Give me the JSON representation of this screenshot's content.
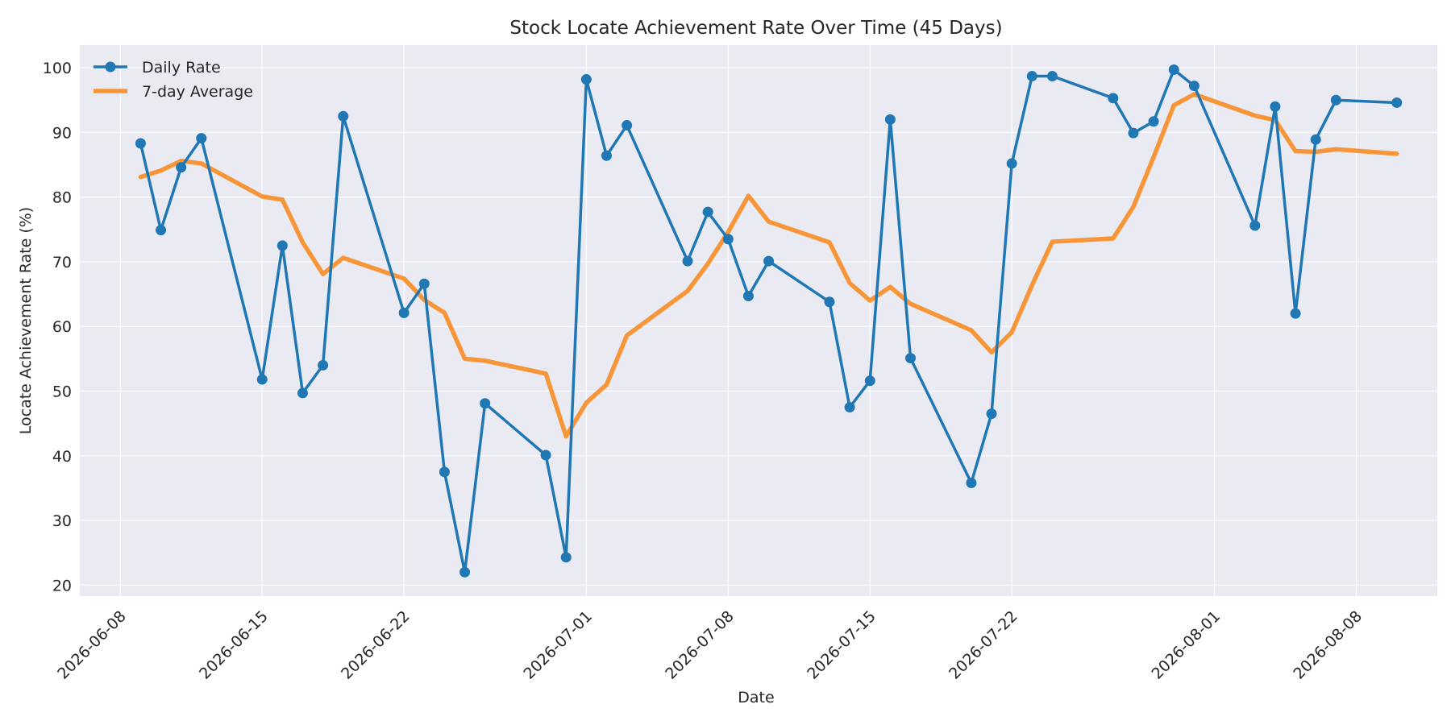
{
  "chart_data": {
    "type": "line",
    "title": "Stock Locate Achievement Rate Over Time (45 Days)",
    "xlabel": "Date",
    "ylabel": "Locate Achievement Rate (%)",
    "ylim": [
      18.3,
      103.5
    ],
    "xlim": [
      "2026-06-06",
      "2026-08-12"
    ],
    "yticks": [
      20,
      30,
      40,
      50,
      60,
      70,
      80,
      90,
      100
    ],
    "xticks": [
      "2026-06-08",
      "2026-06-15",
      "2026-06-22",
      "2026-07-01",
      "2026-07-08",
      "2026-07-15",
      "2026-07-22",
      "2026-08-01",
      "2026-08-08"
    ],
    "grid": true,
    "legend_position": "top-left",
    "series": [
      {
        "name": "Daily Rate",
        "color": "#1f77b4",
        "marker": "circle",
        "points": [
          [
            "2026-06-09",
            88.3
          ],
          [
            "2026-06-10",
            74.9
          ],
          [
            "2026-06-11",
            84.6
          ],
          [
            "2026-06-12",
            89.1
          ],
          [
            "2026-06-15",
            51.8
          ],
          [
            "2026-06-16",
            72.5
          ],
          [
            "2026-06-17",
            49.7
          ],
          [
            "2026-06-18",
            54.0
          ],
          [
            "2026-06-19",
            92.5
          ],
          [
            "2026-06-22",
            62.1
          ],
          [
            "2026-06-23",
            66.6
          ],
          [
            "2026-06-24",
            37.5
          ],
          [
            "2026-06-25",
            22.0
          ],
          [
            "2026-06-26",
            48.1
          ],
          [
            "2026-06-29",
            40.1
          ],
          [
            "2026-06-30",
            24.3
          ],
          [
            "2026-07-01",
            98.2
          ],
          [
            "2026-07-02",
            86.4
          ],
          [
            "2026-07-03",
            91.1
          ],
          [
            "2026-07-06",
            70.1
          ],
          [
            "2026-07-07",
            77.7
          ],
          [
            "2026-07-08",
            73.5
          ],
          [
            "2026-07-09",
            64.7
          ],
          [
            "2026-07-10",
            70.1
          ],
          [
            "2026-07-13",
            63.8
          ],
          [
            "2026-07-14",
            47.5
          ],
          [
            "2026-07-15",
            51.6
          ],
          [
            "2026-07-16",
            92.0
          ],
          [
            "2026-07-17",
            55.1
          ],
          [
            "2026-07-20",
            35.8
          ],
          [
            "2026-07-21",
            46.5
          ],
          [
            "2026-07-22",
            85.2
          ],
          [
            "2026-07-23",
            98.7
          ],
          [
            "2026-07-24",
            98.7
          ],
          [
            "2026-07-27",
            95.3
          ],
          [
            "2026-07-28",
            89.9
          ],
          [
            "2026-07-29",
            91.7
          ],
          [
            "2026-07-30",
            99.7
          ],
          [
            "2026-07-31",
            97.2
          ],
          [
            "2026-08-03",
            75.6
          ],
          [
            "2026-08-04",
            94.0
          ],
          [
            "2026-08-05",
            62.0
          ],
          [
            "2026-08-06",
            88.9
          ],
          [
            "2026-08-07",
            95.0
          ],
          [
            "2026-08-10",
            94.6
          ]
        ]
      },
      {
        "name": "7-day Average",
        "color": "#f79539",
        "marker": "none",
        "points": [
          [
            "2026-06-09",
            83.1
          ],
          [
            "2026-06-10",
            84.1
          ],
          [
            "2026-06-11",
            85.6
          ],
          [
            "2026-06-12",
            85.2
          ],
          [
            "2026-06-15",
            80.1
          ],
          [
            "2026-06-16",
            79.6
          ],
          [
            "2026-06-17",
            73.0
          ],
          [
            "2026-06-18",
            68.1
          ],
          [
            "2026-06-19",
            70.6
          ],
          [
            "2026-06-22",
            67.4
          ],
          [
            "2026-06-23",
            64.1
          ],
          [
            "2026-06-24",
            62.1
          ],
          [
            "2026-06-25",
            55.0
          ],
          [
            "2026-06-26",
            54.7
          ],
          [
            "2026-06-29",
            52.7
          ],
          [
            "2026-06-30",
            43.0
          ],
          [
            "2026-07-01",
            48.2
          ],
          [
            "2026-07-02",
            51.0
          ],
          [
            "2026-07-03",
            58.6
          ],
          [
            "2026-07-06",
            65.5
          ],
          [
            "2026-07-07",
            69.7
          ],
          [
            "2026-07-08",
            74.6
          ],
          [
            "2026-07-09",
            80.2
          ],
          [
            "2026-07-10",
            76.2
          ],
          [
            "2026-07-13",
            73.0
          ],
          [
            "2026-07-14",
            66.7
          ],
          [
            "2026-07-15",
            64.0
          ],
          [
            "2026-07-16",
            66.1
          ],
          [
            "2026-07-17",
            63.5
          ],
          [
            "2026-07-20",
            59.4
          ],
          [
            "2026-07-21",
            56.0
          ],
          [
            "2026-07-22",
            59.1
          ],
          [
            "2026-07-23",
            66.4
          ],
          [
            "2026-07-24",
            73.1
          ],
          [
            "2026-07-27",
            73.6
          ],
          [
            "2026-07-28",
            78.5
          ],
          [
            "2026-07-29",
            86.2
          ],
          [
            "2026-07-30",
            94.2
          ],
          [
            "2026-07-31",
            95.9
          ],
          [
            "2026-08-03",
            92.6
          ],
          [
            "2026-08-04",
            91.9
          ],
          [
            "2026-08-05",
            87.1
          ],
          [
            "2026-08-06",
            87.0
          ],
          [
            "2026-08-07",
            87.4
          ],
          [
            "2026-08-10",
            86.7
          ]
        ]
      }
    ]
  }
}
